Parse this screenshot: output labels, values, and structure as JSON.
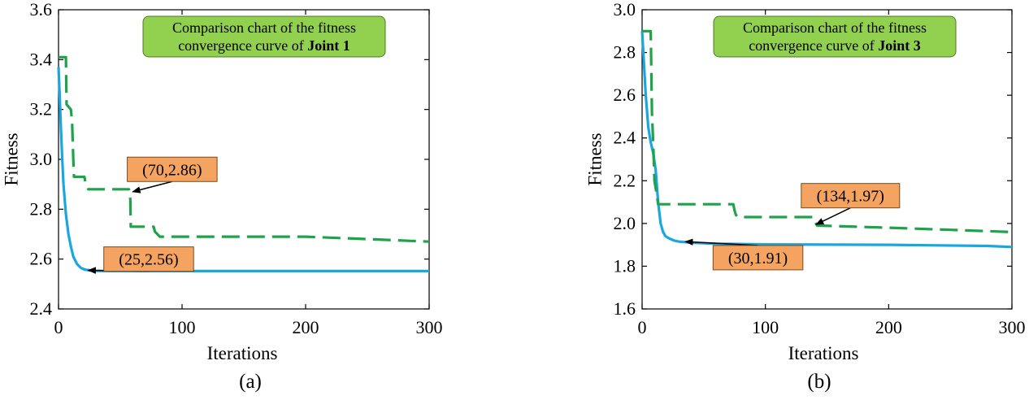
{
  "colors": {
    "proposed_series": "#1aa6e0",
    "baseline_series": "#1ea34a",
    "title_box_fill": "#92d050",
    "title_box_stroke": "#4e7a26",
    "annotation_fill": "#f4a460",
    "annotation_stroke": "#7a4a1a",
    "axis": "#000000"
  },
  "chart_data": [
    {
      "type": "line",
      "panel_label": "(a)",
      "title": {
        "prefix": "Comparison chart of the fitness",
        "line2": "convergence curve of ",
        "bold": "Joint 1"
      },
      "xlabel": "Iterations",
      "ylabel": "Fitness",
      "xlim": [
        0,
        300
      ],
      "ylim": [
        2.4,
        3.6
      ],
      "xticks": [
        0,
        100,
        200,
        300
      ],
      "yticks": [
        2.4,
        2.6,
        2.8,
        3.0,
        3.2,
        3.4,
        3.6
      ],
      "ytick_labels": [
        "2.4",
        "2.6",
        "2.8",
        "3.0",
        "3.2",
        "3.4",
        "3.6"
      ],
      "grid": false,
      "series": [
        {
          "style": "solid",
          "color": "#1aa6e0",
          "x": [
            0,
            1,
            2,
            3,
            4,
            6,
            8,
            10,
            12,
            15,
            18,
            21,
            25,
            30,
            40,
            60,
            100,
            200,
            300
          ],
          "y": [
            3.37,
            3.25,
            3.12,
            3.0,
            2.9,
            2.78,
            2.7,
            2.65,
            2.61,
            2.58,
            2.565,
            2.558,
            2.555,
            2.553,
            2.552,
            2.552,
            2.552,
            2.552,
            2.552
          ]
        },
        {
          "style": "dashed",
          "color": "#1ea34a",
          "x": [
            0,
            6,
            6.5,
            10,
            11,
            12,
            12.5,
            21,
            22,
            23,
            24,
            57,
            58,
            58.5,
            62,
            77,
            78,
            80,
            81,
            82,
            150,
            200,
            250,
            300
          ],
          "y": [
            3.41,
            3.41,
            3.22,
            3.2,
            3.15,
            3.0,
            2.93,
            2.93,
            2.9,
            2.89,
            2.88,
            2.88,
            2.86,
            2.73,
            2.73,
            2.73,
            2.71,
            2.7,
            2.695,
            2.69,
            2.69,
            2.69,
            2.68,
            2.67
          ]
        }
      ],
      "annotations": [
        {
          "text": "(70,2.86)",
          "x": 70,
          "y": 2.86,
          "target_x": 60,
          "target_y": 2.87,
          "box_x": 92,
          "box_y": 2.96
        },
        {
          "text": "(25,2.56)",
          "x": 25,
          "y": 2.56,
          "target_x": 24,
          "target_y": 2.555,
          "box_x": 73,
          "box_y": 2.6
        }
      ]
    },
    {
      "type": "line",
      "panel_label": "(b)",
      "title": {
        "prefix": "Comparison chart of the fitness",
        "line2": "convergence curve of ",
        "bold": "Joint 3"
      },
      "xlabel": "Iterations",
      "ylabel": "Fitness",
      "xlim": [
        0,
        300
      ],
      "ylim": [
        1.6,
        3.0
      ],
      "xticks": [
        0,
        100,
        200,
        300
      ],
      "yticks": [
        1.6,
        1.8,
        2.0,
        2.2,
        2.4,
        2.6,
        2.8,
        3.0
      ],
      "ytick_labels": [
        "1.6",
        "1.8",
        "2.0",
        "2.2",
        "2.4",
        "2.6",
        "2.8",
        "3.0"
      ],
      "grid": false,
      "series": [
        {
          "style": "solid",
          "color": "#1aa6e0",
          "x": [
            0,
            1,
            2,
            3,
            5,
            7,
            9,
            11,
            13,
            15,
            17,
            19,
            22,
            26,
            30,
            40,
            60,
            100,
            200,
            280,
            300
          ],
          "y": [
            2.9,
            2.8,
            2.7,
            2.6,
            2.45,
            2.38,
            2.33,
            2.25,
            2.1,
            2.0,
            1.96,
            1.94,
            1.93,
            1.92,
            1.915,
            1.91,
            1.905,
            1.902,
            1.9,
            1.895,
            1.89
          ]
        },
        {
          "style": "dashed",
          "color": "#1ea34a",
          "x": [
            0,
            7,
            7.5,
            8,
            9,
            10,
            12,
            13,
            74,
            75,
            76,
            78,
            139,
            140,
            141,
            142,
            144,
            200,
            250,
            300
          ],
          "y": [
            2.9,
            2.9,
            2.7,
            2.52,
            2.38,
            2.2,
            2.13,
            2.09,
            2.09,
            2.06,
            2.04,
            2.03,
            2.03,
            2.01,
            2.0,
            1.99,
            1.99,
            1.98,
            1.97,
            1.96
          ]
        }
      ],
      "annotations": [
        {
          "text": "(134,1.97)",
          "x": 134,
          "y": 1.97,
          "target_x": 141,
          "target_y": 1.995,
          "box_x": 169,
          "box_y": 2.13
        },
        {
          "text": "(30,1.91)",
          "x": 30,
          "y": 1.91,
          "target_x": 35,
          "target_y": 1.915,
          "box_x": 94,
          "box_y": 1.84
        }
      ]
    }
  ]
}
